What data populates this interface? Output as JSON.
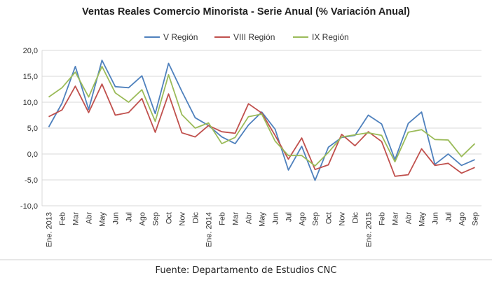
{
  "chart_data": {
    "type": "line",
    "title": "Ventas Reales Comercio Minorista - Serie Anual (% Variación Anual)",
    "source": "Fuente: Departamento de Estudios CNC",
    "categories": [
      "Ene. 2013",
      "Feb",
      "Mar",
      "Abr",
      "May",
      "Jun",
      "Jul",
      "Ago",
      "Sep",
      "Oct",
      "Nov",
      "Dic",
      "Ene. 2014",
      "Feb",
      "Mar",
      "Abr",
      "May",
      "Jun",
      "Jul",
      "Ago",
      "Sep",
      "Oct",
      "Nov",
      "Dic",
      "Ene. 2015",
      "Feb",
      "Mar",
      "Abr",
      "May",
      "Jun",
      "Jul",
      "Ago",
      "Sep"
    ],
    "ylim": [
      -10,
      20
    ],
    "yticks": [
      "20,0",
      "15,0",
      "10,0",
      "5,0",
      "0,0",
      "-5,0",
      "-10,0"
    ],
    "ytick_values": [
      20,
      15,
      10,
      5,
      0,
      -5,
      -10
    ],
    "grid": true,
    "legend_position": "top",
    "series": [
      {
        "name": "V Región",
        "color": "#4f81bd",
        "values": [
          5.2,
          9.8,
          16.9,
          8.6,
          18.1,
          13.0,
          12.8,
          15.1,
          7.8,
          17.5,
          12.1,
          7.0,
          5.5,
          3.3,
          2.0,
          5.6,
          8.1,
          4.8,
          -3.1,
          1.5,
          -5.1,
          1.3,
          3.2,
          3.6,
          7.5,
          5.8,
          -1.1,
          5.9,
          8.1,
          -2.0,
          0.0,
          -2.2,
          -1.1
        ]
      },
      {
        "name": "VIII Región",
        "color": "#c0504d",
        "values": [
          7.2,
          8.5,
          13.1,
          8.0,
          13.5,
          7.5,
          8.0,
          10.7,
          4.2,
          11.6,
          4.1,
          3.3,
          5.5,
          4.3,
          4.0,
          9.7,
          7.9,
          3.6,
          -1.0,
          3.1,
          -3.0,
          -2.1,
          3.8,
          1.6,
          4.3,
          2.4,
          -4.3,
          -4.0,
          1.0,
          -2.2,
          -1.8,
          -3.7,
          -2.6
        ]
      },
      {
        "name": "IX Región",
        "color": "#9bbb59",
        "values": [
          11.0,
          12.8,
          15.8,
          11.0,
          16.9,
          11.8,
          10.0,
          12.4,
          6.3,
          15.3,
          7.6,
          5.0,
          6.0,
          2.0,
          3.2,
          7.2,
          7.7,
          2.5,
          -0.3,
          -0.3,
          -2.3,
          0.3,
          3.3,
          3.7,
          4.1,
          3.6,
          -1.5,
          4.2,
          4.7,
          2.8,
          2.7,
          -0.5,
          2.0
        ]
      }
    ]
  }
}
